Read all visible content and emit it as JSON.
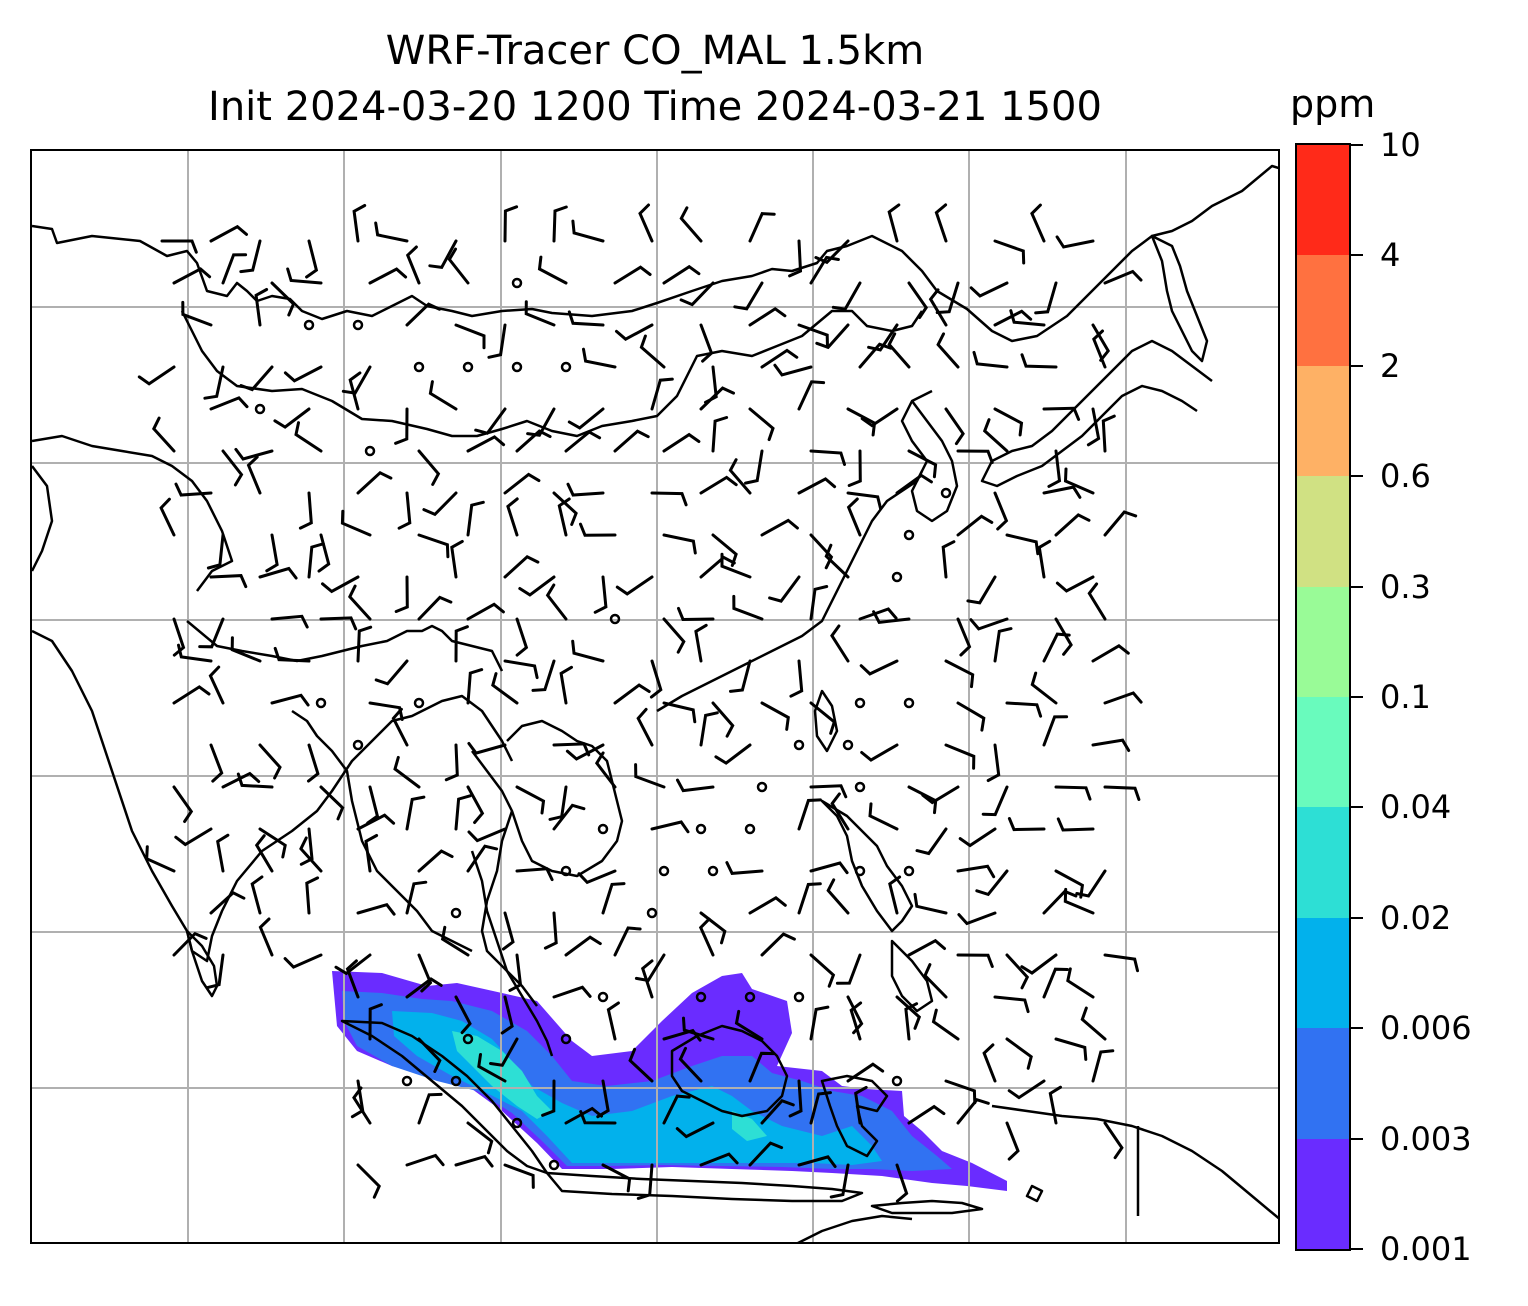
{
  "title": {
    "line1": "WRF-Tracer CO_MAL 1.5km",
    "line2": "Init 2024-03-20 1200 Time 2024-03-21 1500"
  },
  "colorbar": {
    "unit": "ppm",
    "ticks": [
      "0.001",
      "0.003",
      "0.006",
      "0.02",
      "0.04",
      "0.1",
      "0.3",
      "0.6",
      "2",
      "4",
      "10"
    ],
    "colors": [
      "#6a2cff",
      "#3172f2",
      "#02b1ec",
      "#2ddfd5",
      "#69fbbd",
      "#99fb97",
      "#d0e183",
      "#feb165",
      "#ff7140",
      "#ff2a19"
    ]
  },
  "map": {
    "projection_note": "",
    "gridlines": true,
    "land_outline_color": "#000000",
    "gridline_color": "#b0b0b0"
  }
}
